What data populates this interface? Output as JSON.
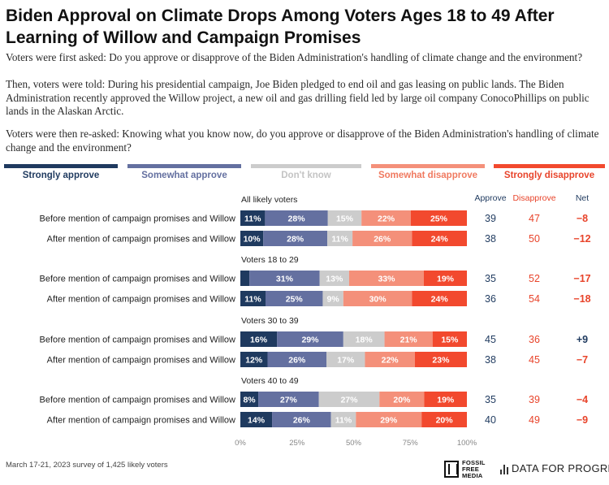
{
  "title": "Biden Approval on Climate Drops Among Voters Ages 18 to 49 After Learning of Willow and Campaign Promises",
  "intro": [
    "Voters were first asked: Do you approve or disapprove of the Biden Administration's handling of climate change and the environment?",
    "Then, voters were told: During his presidential campaign, Joe Biden pledged to end oil and gas leasing on public lands. The Biden Administration recently approved the Willow project, a new oil and gas drilling field led by large oil company ConocoPhillips on public lands in the Alaskan Arctic.",
    "Voters were then re-asked: Knowing what you know now, do you approve or disapprove of the Biden Administration's handling of climate change and the environment?"
  ],
  "footer": {
    "note": "March 17-21, 2023 survey of 1,425 likely voters",
    "logo_left": [
      "FOSSIL",
      "FREE",
      "MEDIA"
    ],
    "logo_right": "DATA FOR PROGRESS"
  },
  "colors": {
    "strongly_approve": "#1f3a5f",
    "somewhat_approve": "#6470a0",
    "dont_know": "#cccccc",
    "somewhat_disapprove": "#f4907a",
    "strongly_disapprove": "#f2492e",
    "approve_text": "#1f3a5f",
    "disapprove_text": "#e8442b"
  },
  "chart_data": {
    "type": "bar",
    "stacked": true,
    "orientation": "horizontal",
    "legend_position": "top",
    "xlim": [
      0,
      100
    ],
    "x_ticks": [
      "0%",
      "25%",
      "50%",
      "75%",
      "100%"
    ],
    "series_names": [
      "Strongly approve",
      "Somewhat approve",
      "Don't know",
      "Somewhat disapprove",
      "Strongly disapprove"
    ],
    "summary_headers": {
      "approve": "Approve",
      "disapprove": "Disapprove",
      "net": "Net"
    },
    "groups": [
      {
        "name": "All likely voters",
        "rows": [
          {
            "label": "Before mention of campaign promises and Willow",
            "values": [
              11,
              28,
              15,
              22,
              25
            ],
            "labels": [
              "11%",
              "28%",
              "15%",
              "22%",
              "25%"
            ],
            "approve": "39",
            "disapprove": "47",
            "net": "−8"
          },
          {
            "label": "After mention of campaign promises and Willow",
            "values": [
              10,
              28,
              11,
              26,
              24
            ],
            "labels": [
              "10%",
              "28%",
              "11%",
              "26%",
              "24%"
            ],
            "approve": "38",
            "disapprove": "50",
            "net": "−12"
          }
        ]
      },
      {
        "name": "Voters 18 to 29",
        "rows": [
          {
            "label": "Before mention of campaign promises and Willow",
            "values": [
              4,
              31,
              13,
              33,
              19
            ],
            "labels": [
              "",
              "31%",
              "13%",
              "33%",
              "19%"
            ],
            "approve": "35",
            "disapprove": "52",
            "net": "−17"
          },
          {
            "label": "After mention of campaign promises and Willow",
            "values": [
              11,
              25,
              9,
              30,
              24
            ],
            "labels": [
              "11%",
              "25%",
              "9%",
              "30%",
              "24%"
            ],
            "approve": "36",
            "disapprove": "54",
            "net": "−18"
          }
        ]
      },
      {
        "name": "Voters 30 to 39",
        "rows": [
          {
            "label": "Before mention of campaign promises and Willow",
            "values": [
              16,
              29,
              18,
              21,
              15
            ],
            "labels": [
              "16%",
              "29%",
              "18%",
              "21%",
              "15%"
            ],
            "approve": "45",
            "disapprove": "36",
            "net": "+9"
          },
          {
            "label": "After mention of campaign promises and Willow",
            "values": [
              12,
              26,
              17,
              22,
              23
            ],
            "labels": [
              "12%",
              "26%",
              "17%",
              "22%",
              "23%"
            ],
            "approve": "38",
            "disapprove": "45",
            "net": "−7"
          }
        ]
      },
      {
        "name": "Voters 40 to 49",
        "rows": [
          {
            "label": "Before mention of campaign promises and Willow",
            "values": [
              8,
              27,
              27,
              20,
              19
            ],
            "labels": [
              "8%",
              "27%",
              "27%",
              "20%",
              "19%"
            ],
            "approve": "35",
            "disapprove": "39",
            "net": "−4"
          },
          {
            "label": "After mention of campaign promises and Willow",
            "values": [
              14,
              26,
              11,
              29,
              20
            ],
            "labels": [
              "14%",
              "26%",
              "11%",
              "29%",
              "20%"
            ],
            "approve": "40",
            "disapprove": "49",
            "net": "−9"
          }
        ]
      }
    ]
  }
}
